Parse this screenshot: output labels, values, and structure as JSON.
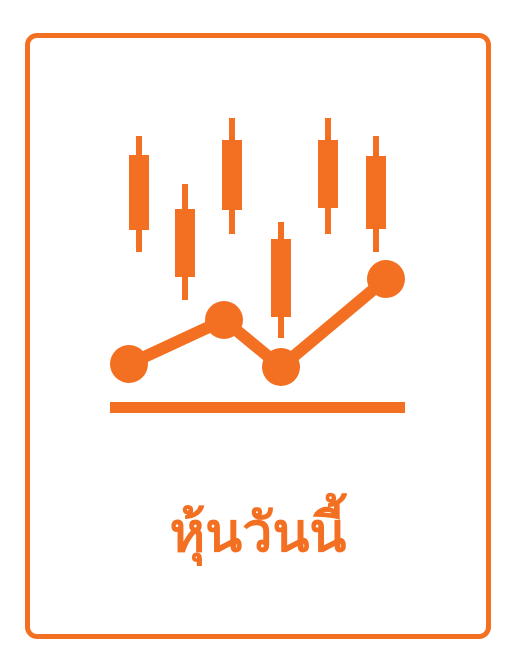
{
  "tile": {
    "label": "หุ้นวันนี้",
    "icon": "stock-chart-icon",
    "accent_color": "#f36f21",
    "border_color": "#f36f21",
    "background_color": "#ffffff"
  }
}
